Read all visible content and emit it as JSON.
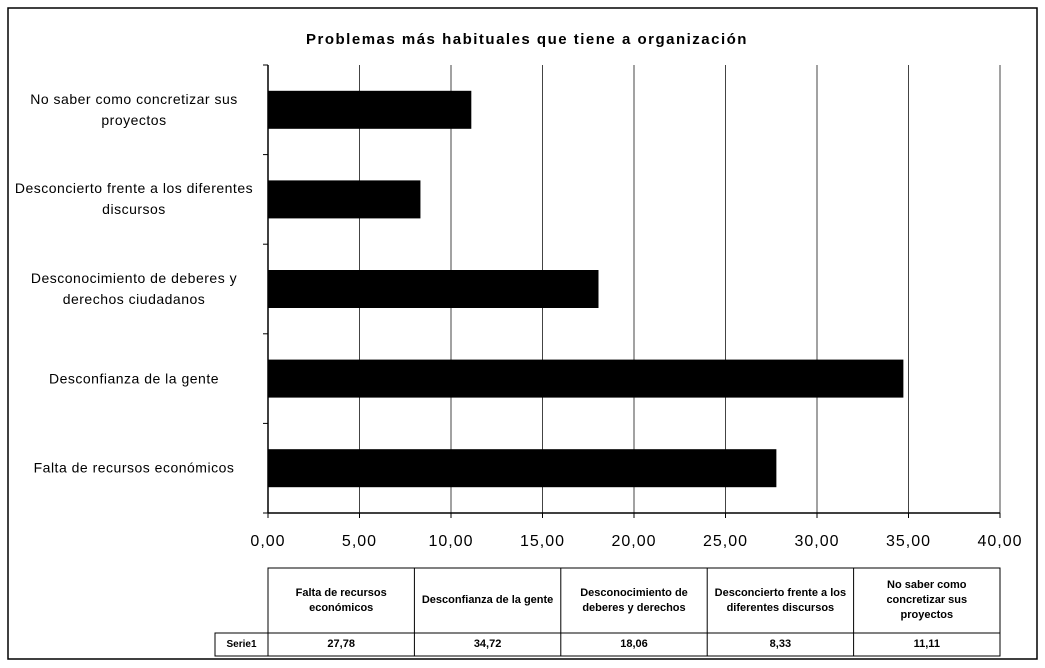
{
  "chart_data": {
    "type": "barh",
    "title": "Problemas más habituales que tiene a organización",
    "categories": [
      "Falta de recursos económicos",
      "Desconfianza de la gente",
      "Desconocimiento de deberes y derechos ciudadanos",
      "Desconcierto frente a los diferentes discursos",
      "No saber como concretizar sus proyectos"
    ],
    "series": [
      {
        "name": "Serie1",
        "color": "#000000",
        "values": [
          27.78,
          34.72,
          18.06,
          8.33,
          11.11
        ],
        "value_labels": [
          "27,78",
          "34,72",
          "18,06",
          "8,33",
          "11,11"
        ]
      }
    ],
    "table_categories": [
      "Falta de recursos económicos",
      "Desconfianza de la gente",
      "Desconocimiento de deberes y derechos",
      "Desconcierto frente a los diferentes discursos",
      "No saber como concretizar sus proyectos"
    ],
    "xlim": [
      0,
      40
    ],
    "xticks": [
      {
        "value": 0,
        "label": "0,00"
      },
      {
        "value": 5,
        "label": "5,00"
      },
      {
        "value": 10,
        "label": "10,00"
      },
      {
        "value": 15,
        "label": "15,00"
      },
      {
        "value": 20,
        "label": "20,00"
      },
      {
        "value": 25,
        "label": "25,00"
      },
      {
        "value": 30,
        "label": "30,00"
      },
      {
        "value": 35,
        "label": "35,00"
      },
      {
        "value": 40,
        "label": "40,00"
      }
    ],
    "grid": true
  }
}
